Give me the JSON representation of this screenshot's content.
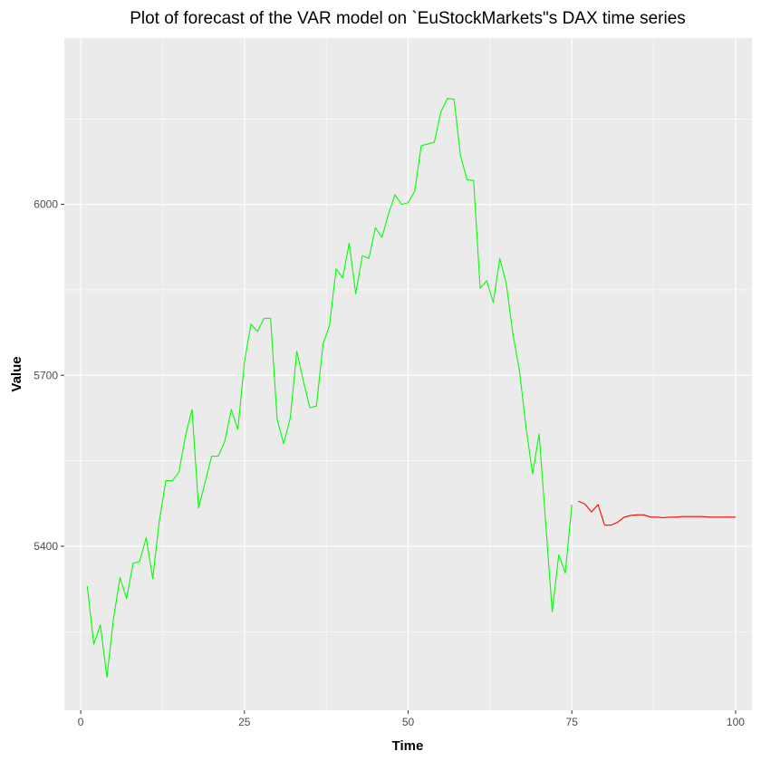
{
  "chart_data": {
    "type": "line",
    "title": "Plot of forecast of the VAR model on `EuStockMarkets\"s DAX time series",
    "xlabel": "Time",
    "ylabel": "Value",
    "xlim": [
      -2.5,
      102.5
    ],
    "ylim": [
      5112,
      6292
    ],
    "x_ticks": [
      0,
      25,
      50,
      75,
      100
    ],
    "x_tick_labels": [
      "0",
      "25",
      "50",
      "75",
      "100"
    ],
    "y_ticks": [
      5400,
      5700,
      6000
    ],
    "y_tick_labels": [
      "5400",
      "5700",
      "6000"
    ],
    "grid": true,
    "legend": "none",
    "series": [
      {
        "color": "#00ff00",
        "x": [
          1,
          2,
          3,
          4,
          5,
          6,
          7,
          8,
          9,
          10,
          11,
          12,
          13,
          14,
          15,
          16,
          17,
          18,
          19,
          20,
          21,
          22,
          23,
          24,
          25,
          26,
          27,
          28,
          29,
          30,
          31,
          32,
          33,
          34,
          35,
          36,
          37,
          38,
          39,
          40,
          41,
          42,
          43,
          44,
          45,
          46,
          47,
          48,
          49,
          50,
          51,
          52,
          53,
          54,
          55,
          56,
          57,
          58,
          59,
          60,
          61,
          62,
          63,
          64,
          65,
          66,
          67,
          68,
          69,
          70,
          71,
          72,
          73,
          74,
          75
        ],
        "values": [
          5330,
          5228,
          5262,
          5170,
          5272,
          5345,
          5308,
          5370,
          5373,
          5415,
          5343,
          5444,
          5515,
          5515,
          5530,
          5594,
          5640,
          5467,
          5512,
          5558,
          5558,
          5584,
          5640,
          5605,
          5723,
          5790,
          5777,
          5800,
          5800,
          5622,
          5580,
          5625,
          5742,
          5690,
          5643,
          5646,
          5755,
          5788,
          5887,
          5871,
          5932,
          5843,
          5910,
          5905,
          5959,
          5942,
          5983,
          6017,
          6000,
          6003,
          6023,
          6103,
          6106,
          6109,
          6162,
          6186,
          6185,
          6085,
          6043,
          6042,
          5853,
          5866,
          5828,
          5905,
          5860,
          5772,
          5708,
          5609,
          5527,
          5597,
          5441,
          5285,
          5385,
          5353,
          5473
        ]
      },
      {
        "color": "#ff0000",
        "x": [
          76,
          77,
          78,
          79,
          80,
          81,
          82,
          83,
          84,
          85,
          86,
          87,
          88,
          89,
          90,
          91,
          92,
          93,
          94,
          95,
          96,
          97,
          98,
          99,
          100
        ],
        "values": [
          5479,
          5474,
          5460,
          5473,
          5437,
          5437,
          5442,
          5451,
          5454,
          5455,
          5455,
          5451,
          5451,
          5450,
          5451,
          5451,
          5452,
          5452,
          5452,
          5452,
          5451,
          5451,
          5451,
          5451,
          5451
        ]
      }
    ]
  }
}
